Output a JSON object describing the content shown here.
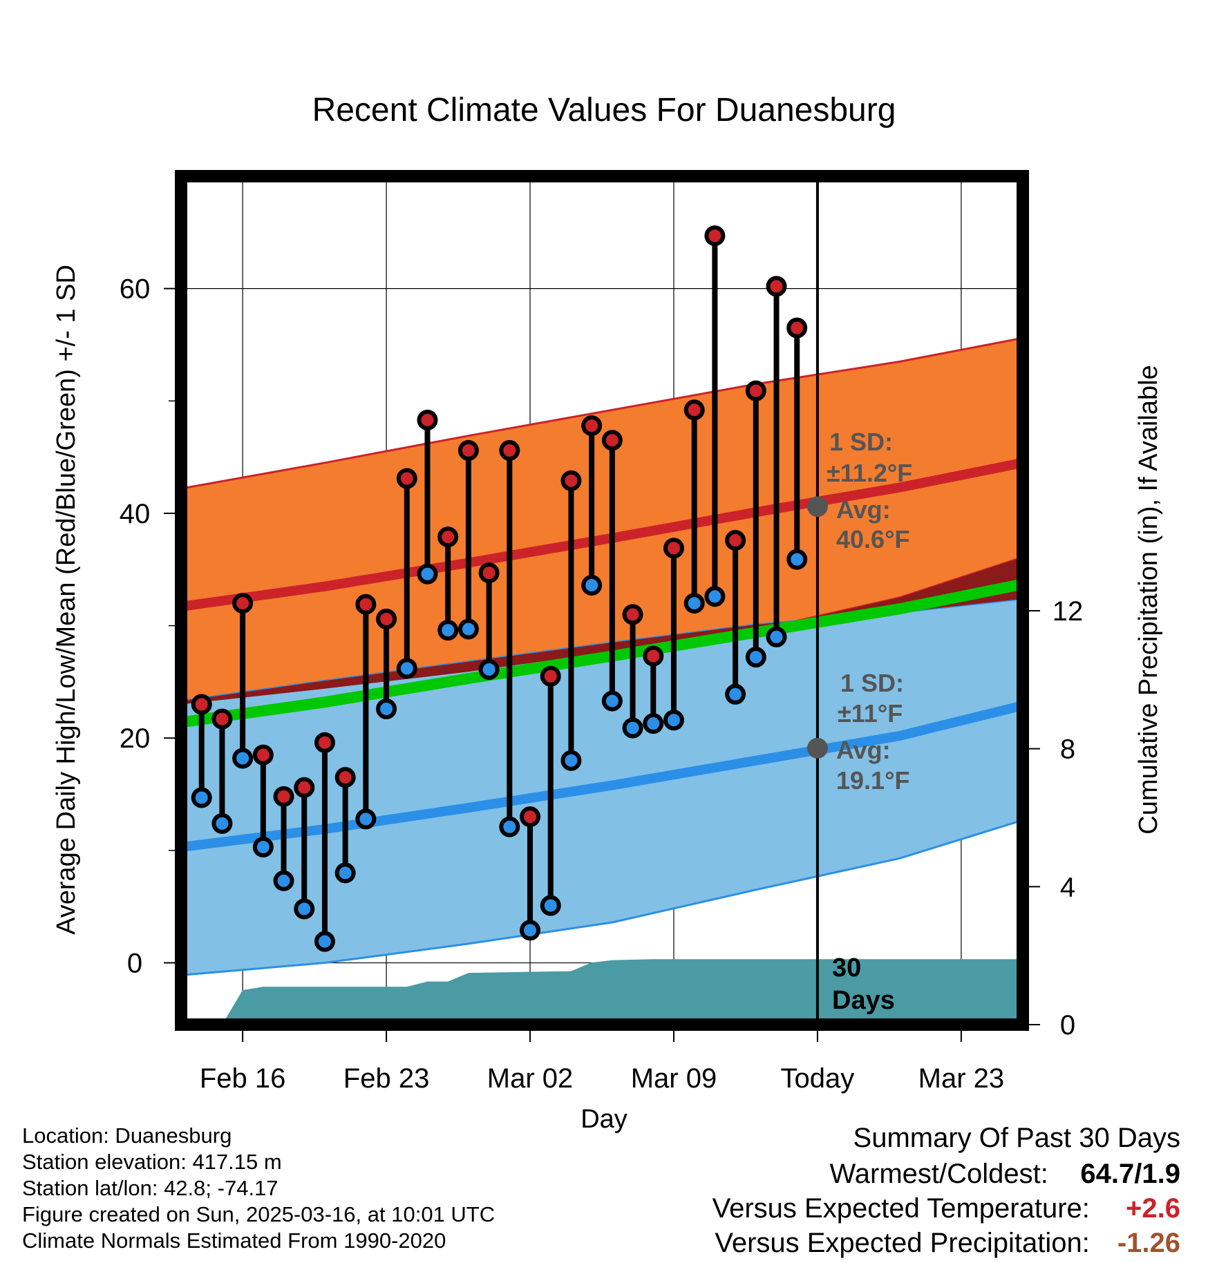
{
  "chart_data": {
    "type": "line",
    "title": "Recent Climate Values For Duanesburg",
    "xlabel": "Day",
    "ylabel": "Average Daily High/Low/Mean (Red/Blue/Green) +/- 1 SD",
    "y2label": "Cumulative Precipitation (in), If Available",
    "ylim": [
      -5.5,
      70
    ],
    "y2lim": [
      0,
      24.6
    ],
    "yticks": [
      0,
      20,
      40,
      60
    ],
    "yticks_labels": [
      "0",
      "20",
      "40",
      "60"
    ],
    "y2ticks": [
      0,
      4,
      8,
      12
    ],
    "y2ticks_labels": [
      "0",
      "4",
      "8",
      "12"
    ],
    "x_range": [
      "2025-02-13",
      "2025-03-26"
    ],
    "xticks": [
      "2025-02-16",
      "2025-02-23",
      "2025-03-02",
      "2025-03-09",
      "2025-03-16",
      "2025-03-23"
    ],
    "xtick_labels": [
      "Feb 16",
      "Feb 23",
      "Mar 02",
      "Mar 09",
      "Today",
      "Mar 23"
    ],
    "grid": true,
    "today": "2025-03-16",
    "normals": {
      "x": [
        "2025-02-13",
        "2025-02-20",
        "2025-02-27",
        "2025-03-06",
        "2025-03-13",
        "2025-03-20",
        "2025-03-26"
      ],
      "high_mean": [
        31.7,
        33.5,
        35.6,
        37.8,
        40.1,
        42.3,
        44.5
      ],
      "high_upper": [
        42.2,
        44.5,
        46.9,
        49.2,
        51.5,
        53.5,
        55.6
      ],
      "high_lower": [
        23.0,
        24.4,
        25.9,
        27.7,
        29.6,
        32.5,
        36.1
      ],
      "low_mean": [
        10.3,
        11.9,
        13.8,
        15.8,
        18.0,
        20.2,
        22.9
      ],
      "low_upper": [
        23.3,
        25.1,
        26.8,
        28.5,
        30.1,
        31.2,
        32.4
      ],
      "low_lower": [
        -1.1,
        0.0,
        1.7,
        3.6,
        6.5,
        9.3,
        12.7
      ],
      "mean_line": [
        21.4,
        23.2,
        25.3,
        27.3,
        29.4,
        31.5,
        33.7
      ]
    },
    "series": [
      {
        "role": "high",
        "x": [
          "2025-02-14",
          "2025-02-15",
          "2025-02-16",
          "2025-02-17",
          "2025-02-18",
          "2025-02-19",
          "2025-02-20",
          "2025-02-21",
          "2025-02-22",
          "2025-02-23",
          "2025-02-24",
          "2025-02-25",
          "2025-02-26",
          "2025-02-27",
          "2025-02-28",
          "2025-03-01",
          "2025-03-02",
          "2025-03-03",
          "2025-03-04",
          "2025-03-05",
          "2025-03-06",
          "2025-03-07",
          "2025-03-08",
          "2025-03-09",
          "2025-03-10",
          "2025-03-11",
          "2025-03-12",
          "2025-03-13",
          "2025-03-14",
          "2025-03-15"
        ],
        "values": [
          23.0,
          21.7,
          32.0,
          18.5,
          14.8,
          15.6,
          19.6,
          16.5,
          31.9,
          30.6,
          43.1,
          48.3,
          37.9,
          45.6,
          34.7,
          45.6,
          13.0,
          25.5,
          42.9,
          47.8,
          46.5,
          31.0,
          27.3,
          36.9,
          49.2,
          64.7,
          37.6,
          50.9,
          60.2,
          56.5
        ],
        "color": "#cc2229"
      },
      {
        "role": "low",
        "x": [
          "2025-02-14",
          "2025-02-15",
          "2025-02-16",
          "2025-02-17",
          "2025-02-18",
          "2025-02-19",
          "2025-02-20",
          "2025-02-21",
          "2025-02-22",
          "2025-02-23",
          "2025-02-24",
          "2025-02-25",
          "2025-02-26",
          "2025-02-27",
          "2025-02-28",
          "2025-03-01",
          "2025-03-02",
          "2025-03-03",
          "2025-03-04",
          "2025-03-05",
          "2025-03-06",
          "2025-03-07",
          "2025-03-08",
          "2025-03-09",
          "2025-03-10",
          "2025-03-11",
          "2025-03-12",
          "2025-03-13",
          "2025-03-14",
          "2025-03-15"
        ],
        "values": [
          14.7,
          12.4,
          18.2,
          10.3,
          7.3,
          4.8,
          1.9,
          8.0,
          12.8,
          22.6,
          26.2,
          34.6,
          29.6,
          29.7,
          26.1,
          12.1,
          2.9,
          5.1,
          18.0,
          33.6,
          23.3,
          20.9,
          21.3,
          21.6,
          32.0,
          32.6,
          23.9,
          27.2,
          29.0,
          35.9
        ],
        "color": "#2b8fe8"
      }
    ],
    "precip": {
      "x": [
        "2025-02-14",
        "2025-02-15",
        "2025-02-16",
        "2025-02-17",
        "2025-02-19",
        "2025-02-22",
        "2025-02-24",
        "2025-02-25",
        "2025-02-26",
        "2025-02-27",
        "2025-03-01",
        "2025-03-04",
        "2025-03-05",
        "2025-03-06",
        "2025-03-08",
        "2025-03-26"
      ],
      "values": [
        0.0,
        0.0,
        1.0,
        1.1,
        1.1,
        1.1,
        1.1,
        1.25,
        1.25,
        1.5,
        1.52,
        1.55,
        1.8,
        1.87,
        1.9,
        1.9
      ],
      "color": "#4a9ba4"
    },
    "annotations": {
      "high_sd": "1 SD:",
      "high_sd_val": "±11.2°F",
      "high_avg": "Avg:",
      "high_avg_val": "40.6°F",
      "low_sd": "1 SD:",
      "low_sd_val": "±11°F",
      "low_avg": "Avg:",
      "low_avg_val": "19.1°F",
      "days_num": "30",
      "days_label": "Days"
    },
    "today_high_avg": 40.6,
    "today_low_avg": 19.1
  },
  "info": {
    "location": "Location: Duanesburg",
    "elevation": "Station elevation: 417.15 m",
    "latlon": "Station lat/lon: 42.8; -74.17",
    "created": "Figure created on Sun, 2025-03-16, at 10:01 UTC",
    "normals": "Climate Normals Estimated From 1990-2020"
  },
  "summary": {
    "heading": "Summary Of Past 30 Days",
    "warm_cold_label": "Warmest/Coldest:",
    "warm_cold_value": "64.7/1.9",
    "temp_label": "Versus Expected Temperature:",
    "temp_value": "+2.6",
    "precip_label": "Versus Expected Precipitation:",
    "precip_value": "-1.26",
    "temp_color": "#cc2229",
    "precip_color": "#a0522d"
  },
  "colors": {
    "high_band": "#f47c2e",
    "high_line": "#cc2229",
    "low_band": "#82c0e6",
    "low_line": "#2b8fe8",
    "mean_line": "#00c800",
    "overlap": "#8b1a1a",
    "precip": "#4a9ba4"
  }
}
